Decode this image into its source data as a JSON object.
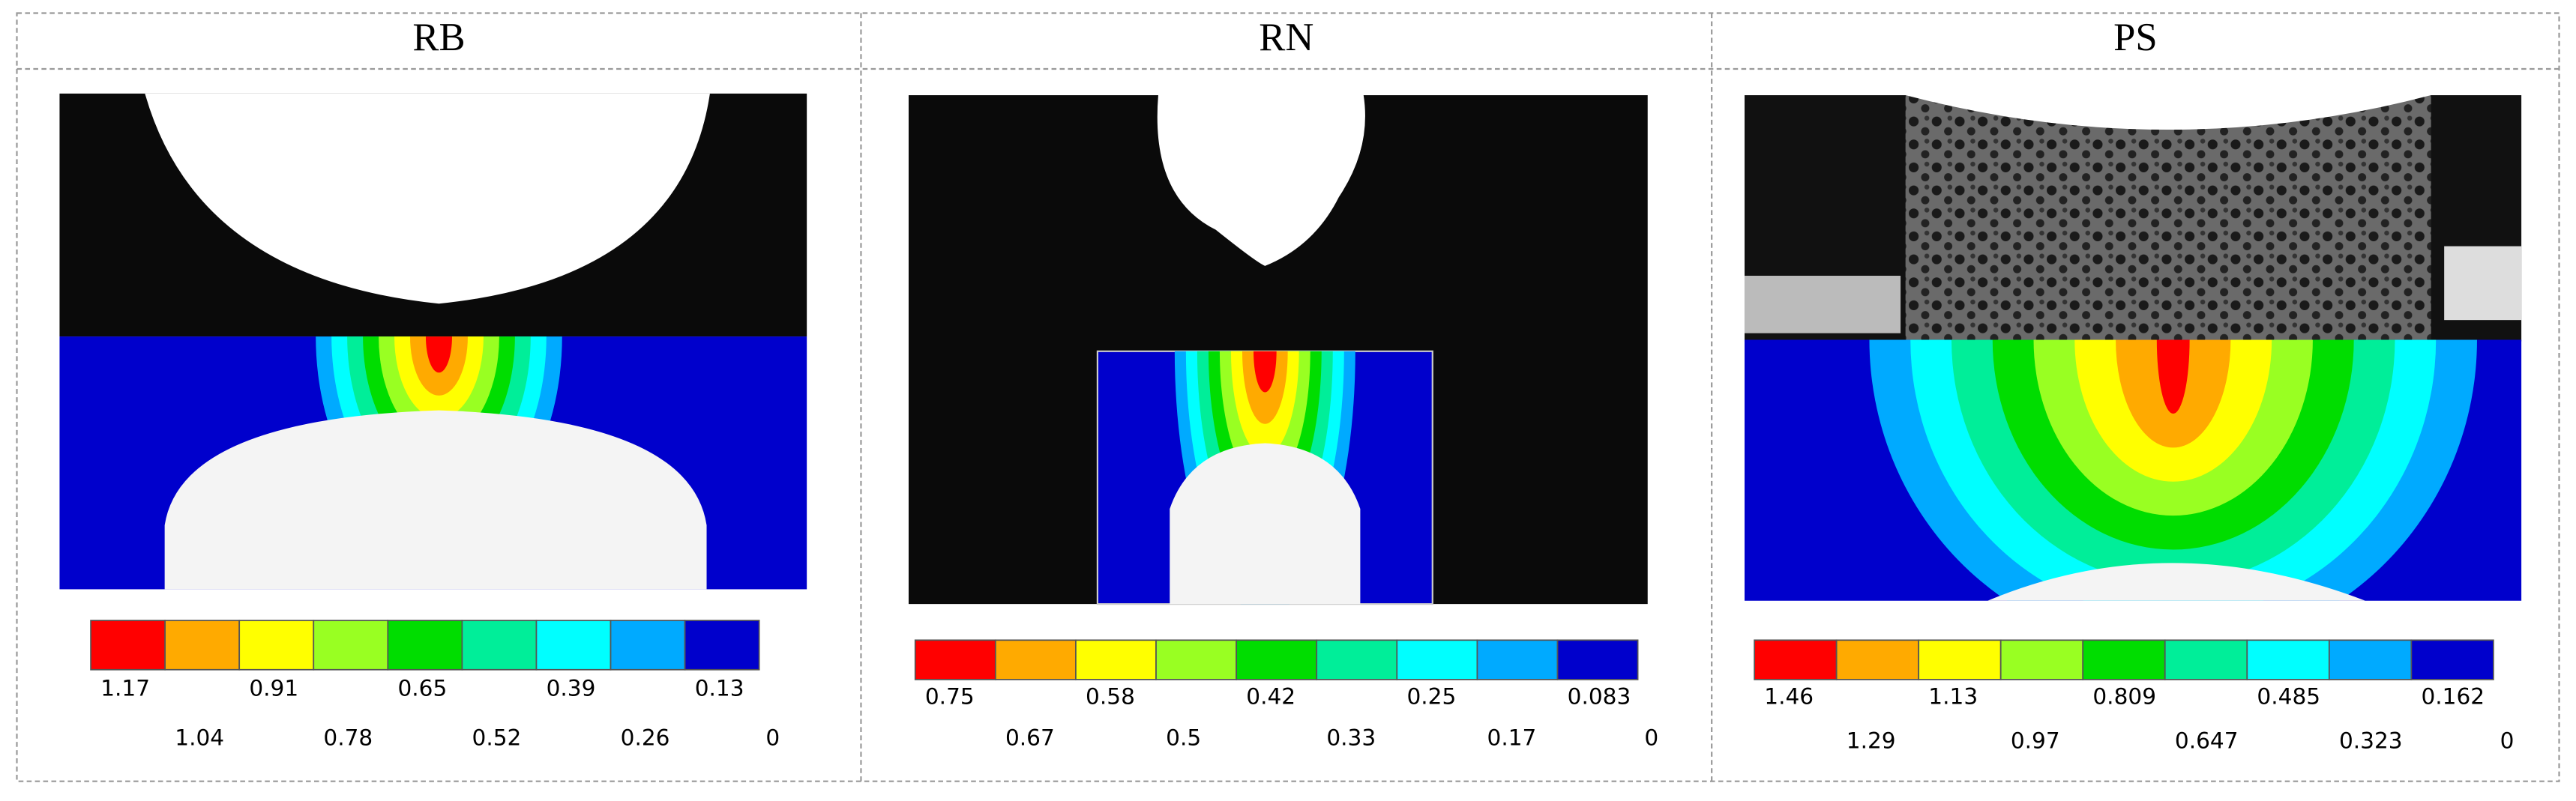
{
  "panels": [
    {
      "title": "RB",
      "levels": [
        1.17,
        1.04,
        0.91,
        0.78,
        0.65,
        0.52,
        0.39,
        0.26,
        0.13,
        0
      ]
    },
    {
      "title": "RN",
      "levels": [
        0.75,
        0.67,
        0.58,
        0.5,
        0.42,
        0.33,
        0.25,
        0.17,
        0.083,
        0
      ]
    },
    {
      "title": "PS",
      "levels": [
        1.46,
        1.29,
        1.13,
        0.97,
        0.809,
        0.647,
        0.485,
        0.323,
        0.162,
        0
      ]
    }
  ],
  "colors": [
    "#ff0000",
    "#ffaa00",
    "#ffff00",
    "#99ff22",
    "#00dd00",
    "#00ee99",
    "#00ffff",
    "#00aaff",
    "#0000cc"
  ]
}
